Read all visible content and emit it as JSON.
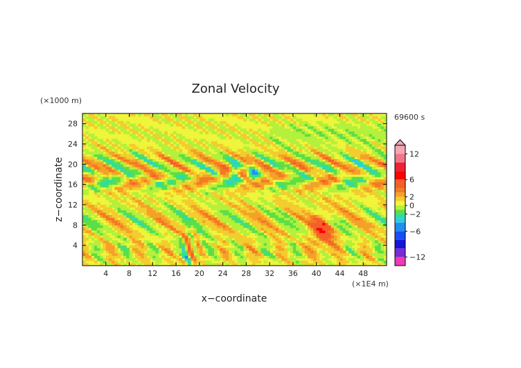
{
  "chart_data": {
    "type": "heatmap",
    "title": "Zonal Velocity",
    "xlabel": "x−coordinate",
    "ylabel": "z−coordinate",
    "x_unit": "(×1E4 m)",
    "y_unit": "(×1000 m)",
    "time_label": "69600 s",
    "xlim": [
      0,
      52
    ],
    "ylim": [
      0,
      30
    ],
    "x_ticks": [
      4,
      8,
      12,
      16,
      20,
      24,
      28,
      32,
      36,
      40,
      44,
      48
    ],
    "y_ticks": [
      4,
      8,
      12,
      16,
      20,
      24,
      28
    ],
    "x_tick_labels": [
      "4",
      "8",
      "12",
      "16",
      "20",
      "24",
      "28",
      "32",
      "36",
      "40",
      "44",
      "48"
    ],
    "y_tick_labels": [
      "4",
      "8",
      "12",
      "16",
      "20",
      "24",
      "28"
    ],
    "colorbar": {
      "min": -14,
      "max": 14,
      "tick_values": [
        12,
        6,
        2,
        0,
        -2,
        -6,
        -12
      ],
      "tick_labels": [
        "12",
        "6",
        "2",
        "0",
        "−2",
        "−6",
        "−12"
      ],
      "levels": [
        {
          "from": 12,
          "to": 14,
          "color": "#f4a7b4"
        },
        {
          "from": 10,
          "to": 12,
          "color": "#f0758a"
        },
        {
          "from": 8,
          "to": 10,
          "color": "#ee2235"
        },
        {
          "from": 6,
          "to": 8,
          "color": "#ff0000"
        },
        {
          "from": 4,
          "to": 6,
          "color": "#f55f2a"
        },
        {
          "from": 3,
          "to": 4,
          "color": "#f37a22"
        },
        {
          "from": 2,
          "to": 3,
          "color": "#f5a128"
        },
        {
          "from": 1,
          "to": 2,
          "color": "#f3cc2e"
        },
        {
          "from": 0,
          "to": 1,
          "color": "#f5f538"
        },
        {
          "from": -1,
          "to": 0,
          "color": "#b4f03c"
        },
        {
          "from": -2,
          "to": -1,
          "color": "#5cde47"
        },
        {
          "from": -3,
          "to": -2,
          "color": "#32dca0"
        },
        {
          "from": -4,
          "to": -3,
          "color": "#2ccde6"
        },
        {
          "from": -6,
          "to": -4,
          "color": "#1f8ff0"
        },
        {
          "from": -8,
          "to": -6,
          "color": "#1a4ef5"
        },
        {
          "from": -10,
          "to": -8,
          "color": "#1515d8"
        },
        {
          "from": -12,
          "to": -10,
          "color": "#7b2ad6"
        },
        {
          "from": -14,
          "to": -12,
          "color": "#ee3bb4"
        }
      ]
    }
  }
}
